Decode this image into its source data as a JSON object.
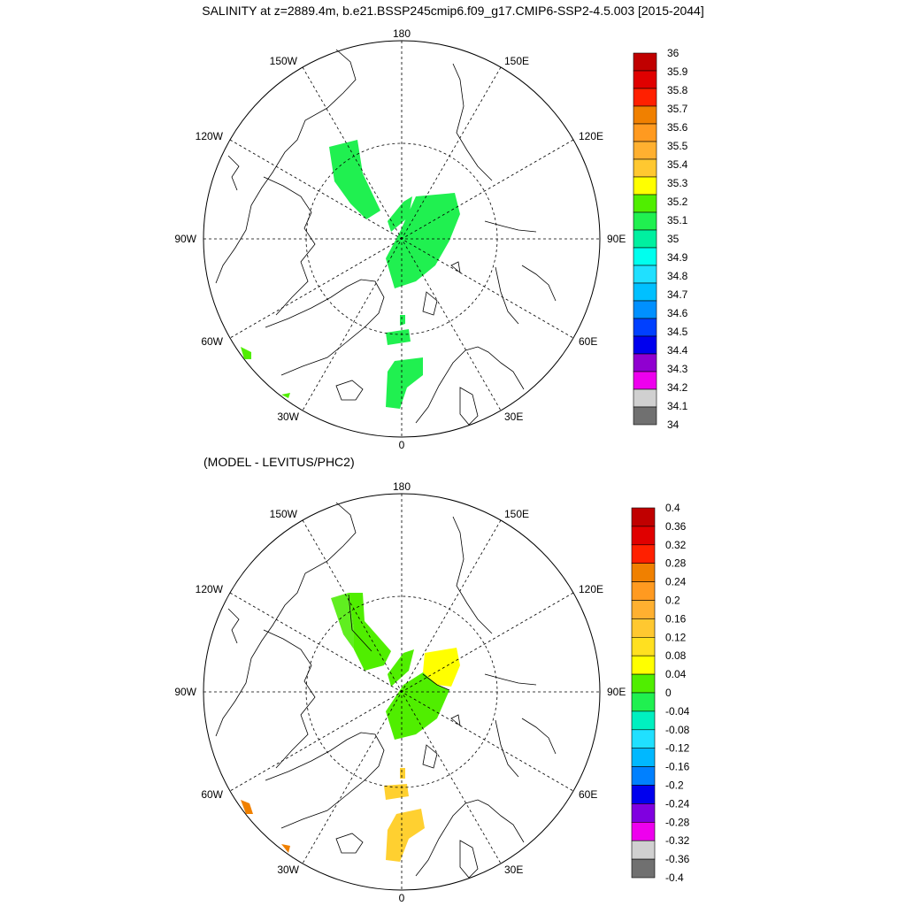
{
  "title": "SALINITY at z=2889.4m, b.e21.BSSP245cmip6.f09_g17.CMIP6-SSP2-4.5.003 [2015-2044]",
  "lower_title": "(MODEL - LEVITUS/PHC2)",
  "lon_labels": {
    "top": "180",
    "bottom": "0",
    "left": "90W",
    "right": "90E",
    "tl1": "150W",
    "tl2": "120W",
    "tr1": "150E",
    "tr2": "120E",
    "bl1": "60W",
    "bl2": "30W",
    "br1": "60E",
    "br2": "30E"
  },
  "colorbar_top": {
    "labels": [
      "36",
      "35.9",
      "35.8",
      "35.7",
      "35.6",
      "35.5",
      "35.4",
      "35.3",
      "35.2",
      "35.1",
      "35",
      "34.9",
      "34.8",
      "34.7",
      "34.6",
      "34.5",
      "34.4",
      "34.3",
      "34.2",
      "34.1",
      "34"
    ],
    "colors": [
      "#c00000",
      "#e00000",
      "#ff2000",
      "#f08000",
      "#ff9a20",
      "#ffb030",
      "#ffc830",
      "#ffff00",
      "#50ee00",
      "#20f050",
      "#00f0a0",
      "#00ffee",
      "#20e0ff",
      "#00c0ff",
      "#0090ff",
      "#0040ff",
      "#0000ee",
      "#9000d0",
      "#ee00ee",
      "#d0d0d0",
      "#707070"
    ]
  },
  "colorbar_bottom": {
    "labels": [
      "0.4",
      "0.36",
      "0.32",
      "0.28",
      "0.24",
      "0.2",
      "0.16",
      "0.12",
      "0.08",
      "0.04",
      "0",
      "-0.04",
      "-0.08",
      "-0.12",
      "-0.16",
      "-0.2",
      "-0.24",
      "-0.28",
      "-0.32",
      "-0.36",
      "-0.4"
    ],
    "colors": [
      "#c00000",
      "#e00000",
      "#ff2000",
      "#f08000",
      "#ff9a20",
      "#ffb030",
      "#ffc830",
      "#ffe020",
      "#ffff00",
      "#50ee00",
      "#20f050",
      "#00f0c0",
      "#20e0ff",
      "#00b8ff",
      "#0080ff",
      "#0000ee",
      "#8000e0",
      "#ee00ee",
      "#d0d0d0",
      "#707070"
    ]
  },
  "field_colors": {
    "top_green": "#20f050",
    "diff_light_green": "#60ee20",
    "diff_green": "#50ee00",
    "diff_yellow": "#ffff00",
    "diff_gold": "#ffd030",
    "diff_orange": "#f08000"
  }
}
